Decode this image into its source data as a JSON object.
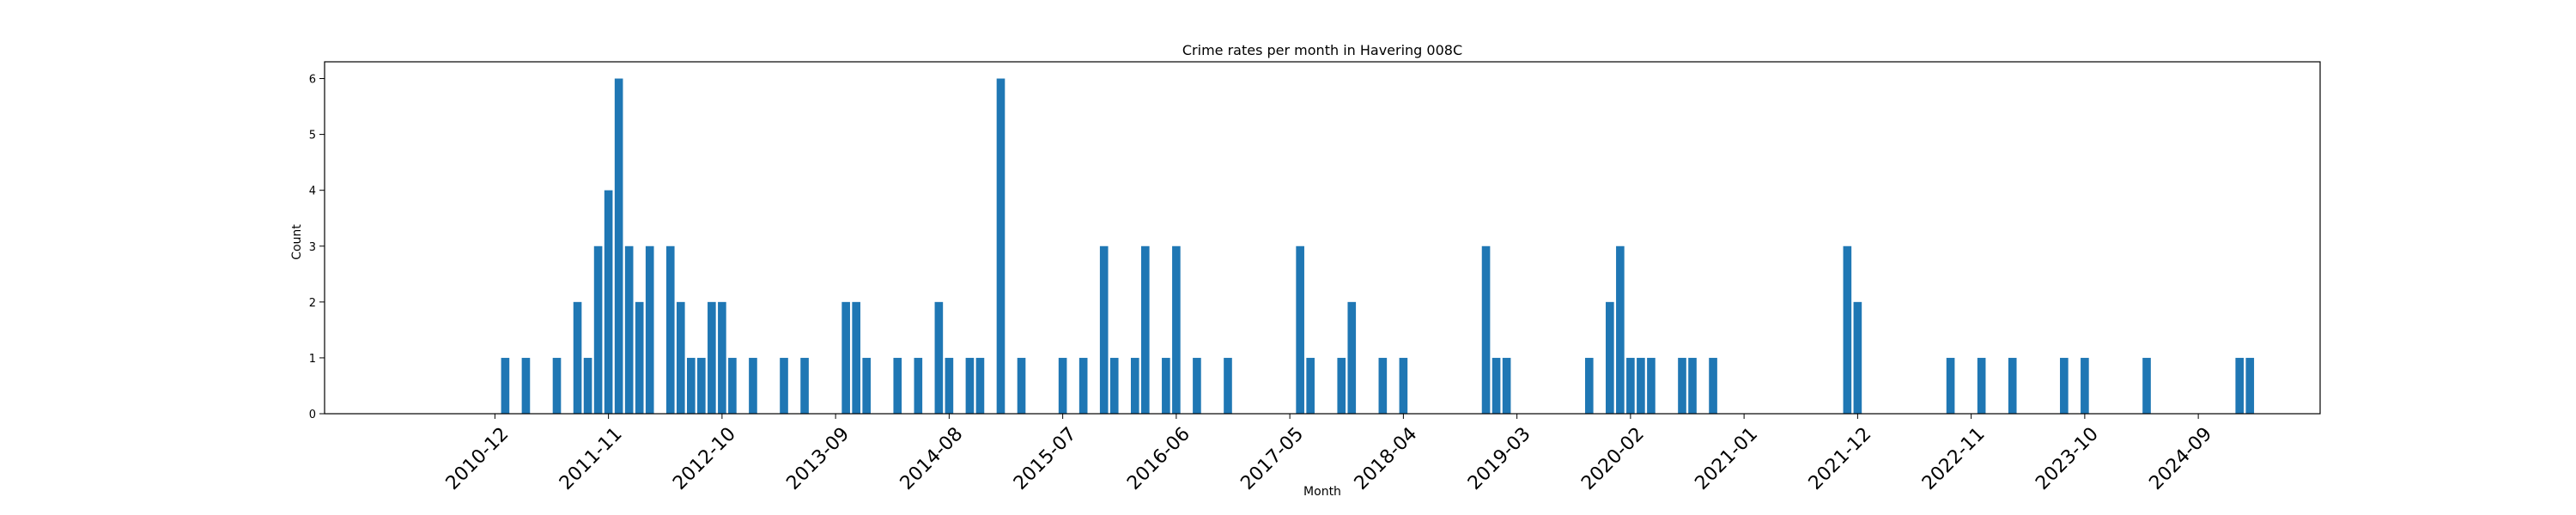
{
  "chart_data": {
    "type": "bar",
    "title": "Crime rates per month in Havering 008C",
    "xlabel": "Month",
    "ylabel": "Count",
    "ylim": [
      0,
      6.3
    ],
    "y_ticks": [
      0,
      1,
      2,
      3,
      4,
      5,
      6
    ],
    "x_ticks": [
      "2010-12",
      "2011-11",
      "2012-10",
      "2013-09",
      "2014-08",
      "2015-07",
      "2016-06",
      "2017-05",
      "2018-04",
      "2019-03",
      "2020-02",
      "2021-01",
      "2021-12",
      "2022-11",
      "2023-10",
      "2024-09"
    ],
    "bar_color": "#1f77b4",
    "grid": false,
    "legend": "none",
    "x": [
      "2011-01",
      "2011-03",
      "2011-06",
      "2011-08",
      "2011-09",
      "2011-10",
      "2011-11",
      "2011-12",
      "2012-01",
      "2012-02",
      "2012-03",
      "2012-05",
      "2012-06",
      "2012-07",
      "2012-08",
      "2012-09",
      "2012-10",
      "2012-11",
      "2013-01",
      "2013-04",
      "2013-06",
      "2013-10",
      "2013-11",
      "2013-12",
      "2014-03",
      "2014-05",
      "2014-07",
      "2014-08",
      "2014-10",
      "2014-11",
      "2015-01",
      "2015-03",
      "2015-07",
      "2015-09",
      "2015-11",
      "2015-12",
      "2016-02",
      "2016-03",
      "2016-05",
      "2016-06",
      "2016-08",
      "2016-11",
      "2017-06",
      "2017-07",
      "2017-10",
      "2017-11",
      "2018-02",
      "2018-04",
      "2018-12",
      "2019-01",
      "2019-02",
      "2019-10",
      "2019-12",
      "2020-01",
      "2020-02",
      "2020-03",
      "2020-04",
      "2020-07",
      "2020-08",
      "2020-10",
      "2021-11",
      "2021-12",
      "2022-09",
      "2022-12",
      "2023-03",
      "2023-08",
      "2023-10",
      "2024-04",
      "2025-01",
      "2025-02"
    ],
    "values": [
      1,
      1,
      1,
      2,
      1,
      3,
      4,
      6,
      3,
      2,
      3,
      3,
      2,
      1,
      1,
      2,
      2,
      1,
      1,
      1,
      1,
      2,
      2,
      1,
      1,
      1,
      2,
      1,
      1,
      1,
      6,
      1,
      1,
      1,
      3,
      1,
      1,
      3,
      1,
      3,
      1,
      1,
      3,
      1,
      1,
      2,
      1,
      1,
      3,
      1,
      1,
      1,
      2,
      3,
      1,
      1,
      1,
      1,
      1,
      1,
      3,
      2,
      1,
      1,
      1,
      1,
      1,
      1,
      1,
      1
    ]
  }
}
